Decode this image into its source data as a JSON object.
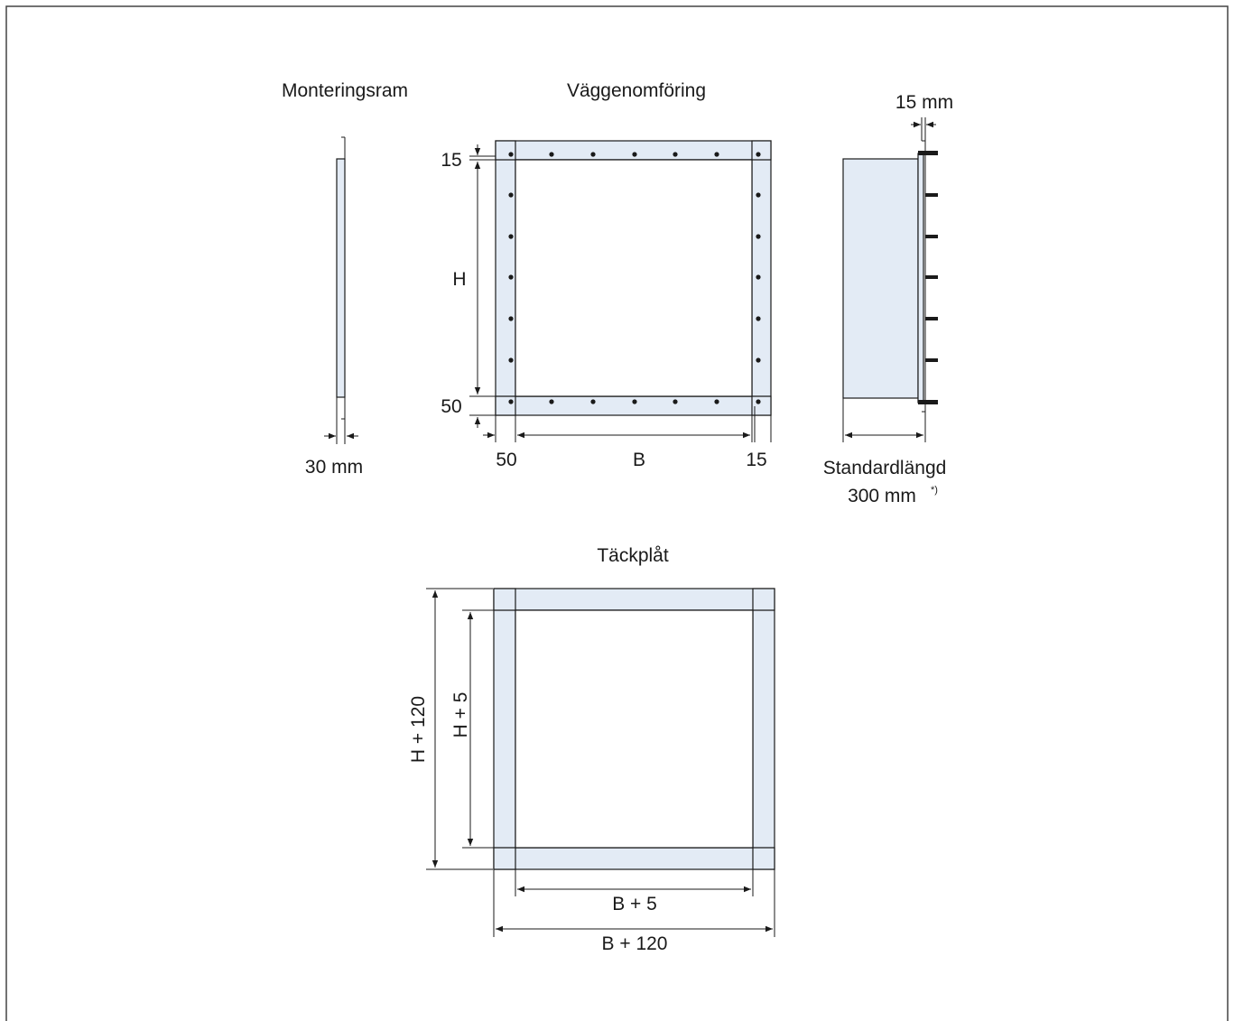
{
  "titles": {
    "monteringsram": "Monteringsram",
    "vaggenomforing": "Väggenomföring",
    "tackplat": "Täckplåt"
  },
  "dimensions": {
    "ram_thickness": "30 mm",
    "top_band": "15",
    "height": "H",
    "bottom_band": "50",
    "left_band": "50",
    "width": "B",
    "right_band": "15",
    "flange": "15 mm",
    "standard_length_label": "Standardlängd",
    "standard_length_value": "300 mm",
    "footnote_mark": "*)",
    "cover_outer_height": "H + 120",
    "cover_inner_height": "H + 5",
    "cover_inner_width": "B + 5",
    "cover_outer_width": "B + 120"
  },
  "colors": {
    "fill": "#e3ebf5",
    "line": "#1a1a1a",
    "frame": "#444444"
  }
}
